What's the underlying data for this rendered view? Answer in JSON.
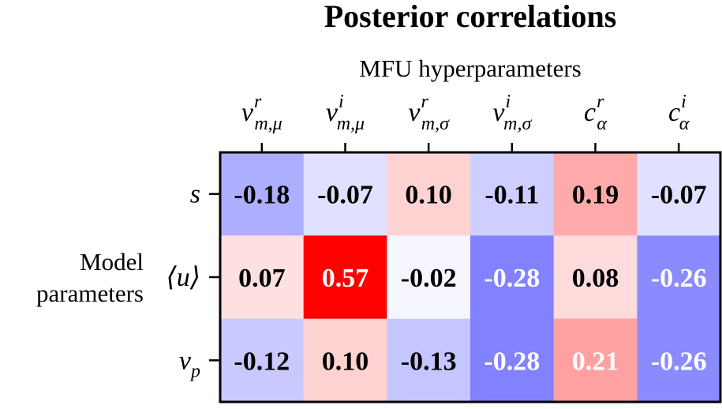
{
  "chart_data": {
    "type": "heatmap",
    "title": "Posterior correlations",
    "xlabel": "MFU hyperparameters",
    "ylabel_lines": [
      "Model",
      "parameters"
    ],
    "columns": [
      {
        "base": "ν",
        "sup": "r",
        "sub": "m,μ"
      },
      {
        "base": "ν",
        "sup": "i",
        "sub": "m,μ"
      },
      {
        "base": "ν",
        "sup": "r",
        "sub": "m,σ"
      },
      {
        "base": "ν",
        "sup": "i",
        "sub": "m,σ"
      },
      {
        "base": "c",
        "sup": "r",
        "sub": "α"
      },
      {
        "base": "c",
        "sup": "i",
        "sub": "α"
      }
    ],
    "rows": [
      {
        "base": "s",
        "sub": ""
      },
      {
        "base": "⟨u⟩",
        "sub": ""
      },
      {
        "base": "ν",
        "sub": "p"
      }
    ],
    "values": [
      [
        -0.18,
        -0.07,
        0.1,
        -0.11,
        0.19,
        -0.07
      ],
      [
        0.07,
        0.57,
        -0.02,
        -0.28,
        0.08,
        -0.26
      ],
      [
        -0.12,
        0.1,
        -0.13,
        -0.28,
        0.21,
        -0.26
      ]
    ],
    "labels": [
      [
        "-0.18",
        "-0.07",
        "0.10",
        "-0.11",
        "0.19",
        "-0.07"
      ],
      [
        "0.07",
        "0.57",
        "-0.02",
        "-0.28",
        "0.08",
        "-0.26"
      ],
      [
        "-0.12",
        "0.10",
        "-0.13",
        "-0.28",
        "0.21",
        "-0.26"
      ]
    ],
    "colormap": "bwr",
    "vlim": [
      -0.57,
      0.57
    ],
    "colors": {
      "negative": "#0000ff",
      "positive": "#ff0000",
      "neutral": "#ffffff",
      "dark_text": "#000000",
      "light_text": "#ffffff"
    }
  }
}
